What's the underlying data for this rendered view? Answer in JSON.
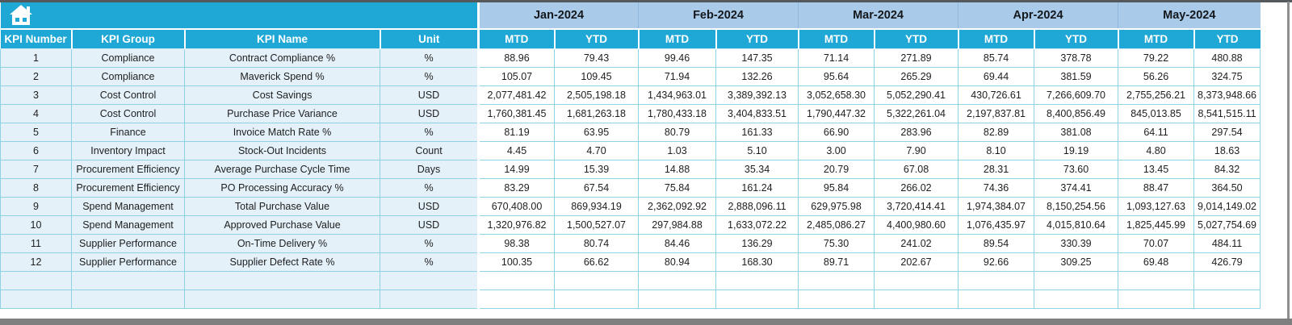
{
  "window": {
    "top_edge": "window-top-border",
    "bottom_edge": "window-bottom-border"
  },
  "toolbar": {
    "home_icon": "home-icon"
  },
  "table": {
    "left_headers": [
      "KPI Number",
      "KPI Group",
      "KPI Name",
      "Unit"
    ],
    "months": [
      "Jan-2024",
      "Feb-2024",
      "Mar-2024",
      "Apr-2024",
      "May-2024"
    ],
    "sub_headers": [
      "MTD",
      "YTD"
    ],
    "rows": [
      {
        "num": "1",
        "group": "Compliance",
        "name": "Contract Compliance %",
        "unit": "%",
        "values": [
          "88.96",
          "79.43",
          "99.46",
          "147.35",
          "71.14",
          "271.89",
          "85.74",
          "378.78",
          "79.22",
          "480.88"
        ]
      },
      {
        "num": "2",
        "group": "Compliance",
        "name": "Maverick Spend %",
        "unit": "%",
        "values": [
          "105.07",
          "109.45",
          "71.94",
          "132.26",
          "95.64",
          "265.29",
          "69.44",
          "381.59",
          "56.26",
          "324.75"
        ]
      },
      {
        "num": "3",
        "group": "Cost Control",
        "name": "Cost Savings",
        "unit": "USD",
        "values": [
          "2,077,481.42",
          "2,505,198.18",
          "1,434,963.01",
          "3,389,392.13",
          "3,052,658.30",
          "5,052,290.41",
          "430,726.61",
          "7,266,609.70",
          "2,755,256.21",
          "8,373,948.66"
        ]
      },
      {
        "num": "4",
        "group": "Cost Control",
        "name": "Purchase Price Variance",
        "unit": "USD",
        "values": [
          "1,760,381.45",
          "1,681,263.18",
          "1,780,433.18",
          "3,404,833.51",
          "1,790,447.32",
          "5,322,261.04",
          "2,197,837.81",
          "8,400,856.49",
          "845,013.85",
          "8,541,515.11"
        ]
      },
      {
        "num": "5",
        "group": "Finance",
        "name": "Invoice Match Rate %",
        "unit": "%",
        "values": [
          "81.19",
          "63.95",
          "80.79",
          "161.33",
          "66.90",
          "283.96",
          "82.89",
          "381.08",
          "64.11",
          "297.54"
        ]
      },
      {
        "num": "6",
        "group": "Inventory Impact",
        "name": "Stock-Out Incidents",
        "unit": "Count",
        "values": [
          "4.45",
          "4.70",
          "1.03",
          "5.10",
          "3.00",
          "7.90",
          "8.10",
          "19.19",
          "4.80",
          "18.63"
        ]
      },
      {
        "num": "7",
        "group": "Procurement Efficiency",
        "name": "Average Purchase Cycle Time",
        "unit": "Days",
        "values": [
          "14.99",
          "15.39",
          "14.88",
          "35.34",
          "20.79",
          "67.08",
          "28.31",
          "73.60",
          "13.45",
          "84.32"
        ]
      },
      {
        "num": "8",
        "group": "Procurement Efficiency",
        "name": "PO Processing Accuracy %",
        "unit": "%",
        "values": [
          "83.29",
          "67.54",
          "75.84",
          "161.24",
          "95.84",
          "266.02",
          "74.36",
          "374.41",
          "88.47",
          "364.50"
        ]
      },
      {
        "num": "9",
        "group": "Spend Management",
        "name": "Total Purchase Value",
        "unit": "USD",
        "values": [
          "670,408.00",
          "869,934.19",
          "2,362,092.92",
          "2,888,096.11",
          "629,975.98",
          "3,720,414.41",
          "1,974,384.07",
          "8,150,254.56",
          "1,093,127.63",
          "9,014,149.02"
        ]
      },
      {
        "num": "10",
        "group": "Spend Management",
        "name": "Approved Purchase Value",
        "unit": "USD",
        "values": [
          "1,320,976.82",
          "1,500,527.07",
          "297,984.88",
          "1,633,072.22",
          "2,485,086.27",
          "4,400,980.60",
          "1,076,435.97",
          "4,015,810.64",
          "1,825,445.99",
          "5,027,754.69"
        ]
      },
      {
        "num": "11",
        "group": "Supplier Performance",
        "name": "On-Time Delivery %",
        "unit": "%",
        "values": [
          "98.38",
          "80.74",
          "84.46",
          "136.29",
          "75.30",
          "241.02",
          "89.54",
          "330.39",
          "70.07",
          "484.11"
        ]
      },
      {
        "num": "12",
        "group": "Supplier Performance",
        "name": "Supplier Defect Rate %",
        "unit": "%",
        "values": [
          "100.35",
          "66.62",
          "80.94",
          "168.30",
          "89.71",
          "202.67",
          "92.66",
          "309.25",
          "69.48",
          "426.79"
        ]
      }
    ],
    "empty_rows": 2
  },
  "colors": {
    "header_cyan": "#1FA7D5",
    "month_blue": "#A9CAE9",
    "meta_bg": "#E4F1F9",
    "border_teal": "#8FD2E3",
    "text_dark": "#1E1E1E",
    "edge_gray": "#7F7F7F"
  }
}
